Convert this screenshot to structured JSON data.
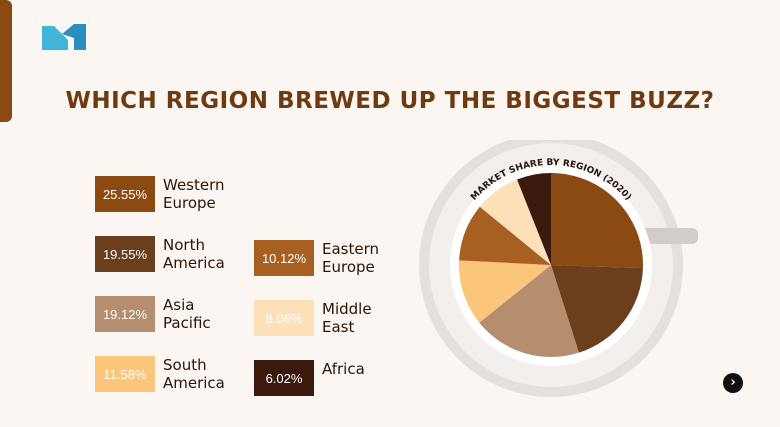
{
  "chart_data": {
    "type": "pie",
    "title": "WHICH REGION BREWED UP THE BIGGEST BUZZ?",
    "subtitle": "MARKET SHARE BY REGION (2020)",
    "categories": [
      "Western Europe",
      "North America",
      "Asia Pacific",
      "South America",
      "Eastern Europe",
      "Middle East",
      "Africa"
    ],
    "values": [
      25.55,
      19.55,
      19.12,
      11.58,
      10.12,
      8.06,
      6.02
    ],
    "value_labels": [
      "25.55%",
      "19.55%",
      "19.12%",
      "11.58%",
      "10.12%",
      "8.06%",
      "6.02%"
    ],
    "colors": [
      "#8a4a12",
      "#6b3e1e",
      "#b48e6e",
      "#fbc57a",
      "#a85f22",
      "#fde0b8",
      "#3b1a0d"
    ]
  }
}
